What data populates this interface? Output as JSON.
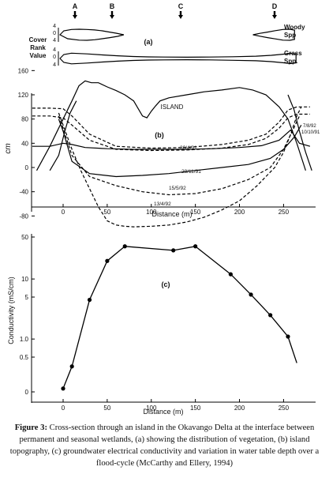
{
  "caption": {
    "figure_label": "Figure 3:",
    "text": "Cross-section through an island in the Okavango Delta at the interface between permanent and seasonal wetlands, (a) showing the distribution of vegetation, (b) island topography, (c) groundwater electrical conductivity  and variation in water table depth over a flood-cycle (McCarthy and Ellery, 1994)"
  },
  "chart_data": [
    {
      "panel": "a",
      "panel_label": "(a)",
      "type": "area",
      "axis_label_lines": [
        "Cover",
        "Rank",
        "Value"
      ],
      "markers": [
        "A",
        "B",
        "C",
        "D"
      ],
      "series": [
        {
          "name": "Woody Spp",
          "name_lines": [
            "Woody",
            "Spp"
          ],
          "ticks": [
            "4",
            "0",
            "4"
          ],
          "segments": [
            {
              "x": [
                -35,
                -30,
                -20,
                -10,
                0,
                10,
                20,
                28,
                38,
                48
              ],
              "y": [
                0,
                2.2,
                3.0,
                3.1,
                3.0,
                2.7,
                2.2,
                1.6,
                0.9,
                0
              ],
              "x_lower": [
                -35,
                -25,
                -10,
                0,
                10,
                20,
                30,
                40,
                48
              ],
              "y_lower": [
                0,
                -2.2,
                -3.0,
                -3.1,
                -2.8,
                -2.2,
                -1.6,
                -0.9,
                0
              ]
            },
            {
              "x": [
                216,
                225,
                235,
                245,
                255,
                264,
                270
              ],
              "y": [
                0,
                0.8,
                1.5,
                2.3,
                3.0,
                3.1,
                2.6
              ],
              "x_lower": [
                216,
                225,
                235,
                245,
                255,
                264,
                270
              ],
              "y_lower": [
                0,
                -0.8,
                -1.6,
                -2.3,
                -3.0,
                -3.1,
                -2.6
              ]
            }
          ]
        },
        {
          "name": "Grass Spp.",
          "name_lines": [
            "Grass",
            "Spp."
          ],
          "ticks": [
            "4",
            "0",
            "4"
          ],
          "segments": [
            {
              "x": [
                -35,
                -30,
                -20,
                0,
                20,
                40,
                60,
                80,
                100,
                130,
                160,
                190,
                220,
                240,
                255,
                265,
                272
              ],
              "y": [
                0,
                2.2,
                3.0,
                2.6,
                2.0,
                1.5,
                1.1,
                0.9,
                0.8,
                0.7,
                0.8,
                1.0,
                1.3,
                1.8,
                2.4,
                2.9,
                2.5
              ],
              "x_lower": [
                -35,
                -30,
                -20,
                0,
                20,
                40,
                60,
                80,
                100,
                130,
                160,
                190,
                220,
                240,
                255,
                265,
                272
              ],
              "y_lower": [
                0,
                -2.2,
                -3.0,
                -2.6,
                -2.0,
                -1.5,
                -1.1,
                -0.9,
                -0.8,
                -0.7,
                -0.8,
                -1.0,
                -1.3,
                -1.8,
                -2.4,
                -2.9,
                -2.5
              ]
            }
          ]
        }
      ]
    },
    {
      "panel": "b",
      "panel_label": "(b)",
      "type": "line",
      "ylabel": "cm",
      "xlabel": "Distance (m)",
      "xlim": [
        -35,
        280
      ],
      "ylim": [
        -110,
        180
      ],
      "xticks": [
        0,
        50,
        100,
        150,
        200,
        250
      ],
      "yticks": [
        160,
        120,
        80,
        40,
        0,
        -40,
        -80
      ],
      "yticklabels": [
        "160",
        "120",
        "80",
        "40",
        "0",
        "-40",
        "-80"
      ],
      "series": [
        {
          "name": "ISLAND",
          "style": "solid",
          "x": [
            -30,
            -15,
            0,
            10,
            18,
            25,
            32,
            40,
            50,
            60,
            70,
            80,
            90,
            95,
            100,
            105,
            110,
            120,
            140,
            160,
            180,
            200,
            215,
            230,
            245,
            255,
            265,
            275
          ],
          "y": [
            -5,
            35,
            80,
            110,
            135,
            143,
            140,
            140,
            133,
            127,
            120,
            110,
            85,
            82,
            93,
            102,
            110,
            115,
            120,
            125,
            128,
            132,
            128,
            120,
            100,
            80,
            40,
            -5
          ]
        },
        {
          "name": "7/8/92",
          "style": "dashed",
          "x": [
            -35,
            -15,
            0,
            10,
            30,
            60,
            100,
            140,
            180,
            210,
            230,
            245,
            255,
            265,
            280
          ],
          "y": [
            98,
            98,
            97,
            85,
            55,
            35,
            32,
            33,
            38,
            45,
            55,
            75,
            95,
            100,
            100
          ]
        },
        {
          "name": "10/10/91",
          "style": "dashed",
          "x": [
            -35,
            -15,
            0,
            10,
            30,
            60,
            100,
            140,
            180,
            210,
            230,
            245,
            255,
            265,
            280
          ],
          "y": [
            85,
            85,
            82,
            70,
            45,
            30,
            28,
            29,
            32,
            38,
            48,
            65,
            82,
            88,
            88
          ]
        },
        {
          "name": "30/4/91",
          "style": "solid",
          "x": [
            -35,
            -15,
            0,
            10,
            25,
            50,
            80,
            110,
            140,
            170,
            200,
            225,
            245,
            258,
            268,
            280
          ],
          "y": [
            35,
            35,
            40,
            38,
            33,
            31,
            30,
            30,
            30,
            31,
            33,
            36,
            45,
            62,
            40,
            35
          ]
        },
        {
          "name": "28/11/91",
          "style": "solid",
          "x": [
            -5,
            0,
            10,
            30,
            60,
            90,
            120,
            150,
            180,
            210,
            235,
            250,
            262,
            270
          ],
          "y": [
            80,
            60,
            10,
            -10,
            -15,
            -13,
            -10,
            -5,
            0,
            5,
            15,
            30,
            50,
            70
          ]
        },
        {
          "name": "15/5/92",
          "style": "dashed",
          "x": [
            -5,
            0,
            10,
            30,
            60,
            90,
            120,
            150,
            180,
            210,
            235,
            250,
            260,
            268
          ],
          "y": [
            85,
            65,
            20,
            -15,
            -30,
            -40,
            -45,
            -43,
            -35,
            -20,
            0,
            30,
            60,
            85
          ]
        },
        {
          "name": "13/4/92",
          "style": "dashed",
          "x": [
            -5,
            0,
            10,
            20,
            30,
            40,
            50,
            60,
            70,
            80,
            100,
            120,
            140,
            160,
            180,
            200,
            220,
            240,
            250,
            258,
            265,
            270
          ],
          "y": [
            90,
            70,
            30,
            -5,
            -35,
            -65,
            -88,
            -95,
            -97,
            -98,
            -97,
            -95,
            -90,
            -82,
            -70,
            -55,
            -30,
            0,
            25,
            55,
            85,
            100
          ]
        }
      ],
      "ground_edges": [
        {
          "x": [
            -15,
            -5,
            2,
            8,
            15
          ],
          "y": [
            -5,
            20,
            60,
            90,
            110
          ]
        },
        {
          "x": [
            255,
            262,
            268,
            275,
            282
          ],
          "y": [
            120,
            95,
            60,
            25,
            -5
          ]
        }
      ]
    },
    {
      "panel": "c",
      "panel_label": "(c)",
      "type": "line",
      "ylabel": "Conductivity (mS/cm)",
      "xlabel": "Distance (m)",
      "xlim": [
        -30,
        280
      ],
      "ylim": [
        0,
        50
      ],
      "yscale": "log",
      "xticks": [
        0,
        50,
        100,
        150,
        200,
        250
      ],
      "yticks": [
        50,
        10,
        5,
        1.0,
        0.5,
        0
      ],
      "yticklabels": [
        "50",
        "10",
        "5",
        "1.0",
        "0.5",
        "0"
      ],
      "series": [
        {
          "name": "conductivity",
          "markers": true,
          "x": [
            0,
            10,
            30,
            50,
            70,
            125,
            150,
            190,
            213,
            235,
            255,
            265
          ],
          "y": [
            0.15,
            0.35,
            4.5,
            20,
            35,
            30,
            35,
            12,
            5.5,
            2.5,
            1.1,
            0.4
          ],
          "y_marked": [
            true,
            true,
            true,
            true,
            true,
            true,
            true,
            true,
            true,
            true,
            true,
            false
          ]
        }
      ]
    }
  ]
}
